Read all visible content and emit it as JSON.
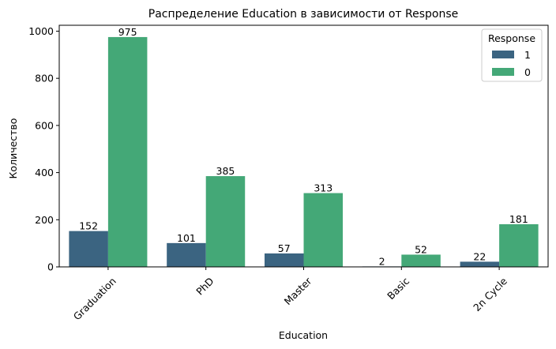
{
  "chart_data": {
    "type": "bar",
    "title": "Распределение Education в зависимости от Response",
    "xlabel": "Education",
    "ylabel": "Количество",
    "categories": [
      "Graduation",
      "PhD",
      "Master",
      "Basic",
      "2n Cycle"
    ],
    "series": [
      {
        "name": "1",
        "values": [
          152,
          101,
          57,
          2,
          22
        ],
        "color": "#3b6481"
      },
      {
        "name": "0",
        "values": [
          975,
          385,
          313,
          52,
          181
        ],
        "color": "#44a877"
      }
    ],
    "ylim": [
      0,
      1025
    ],
    "yticks": [
      0,
      200,
      400,
      600,
      800,
      1000
    ],
    "legend": {
      "title": "Response",
      "placement": "top-right"
    },
    "grid": false
  }
}
